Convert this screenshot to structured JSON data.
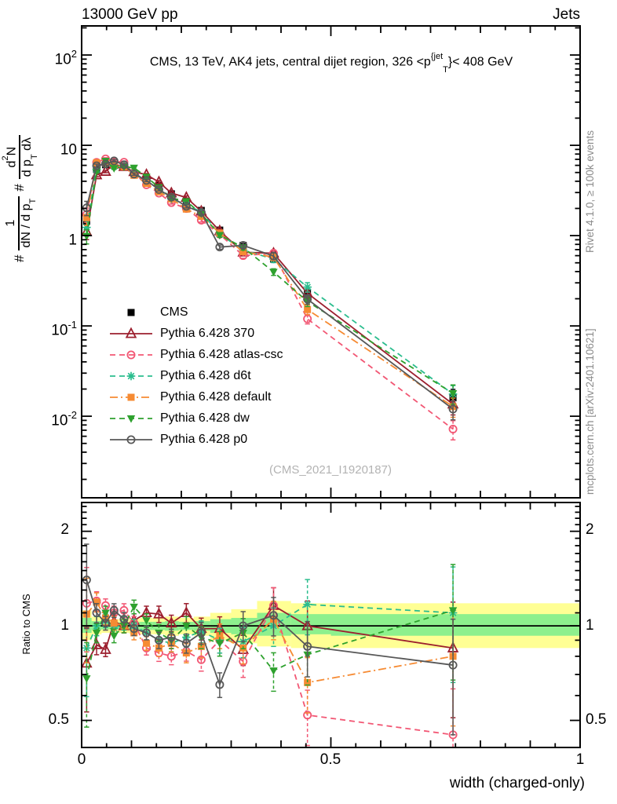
{
  "header": {
    "left": "13000 GeV pp",
    "right": "Jets"
  },
  "title_parts": {
    "main": "CMS, 13 TeV, AK4 jets, central dijet region, 326 <p",
    "sup": "{jet",
    "sub": "T",
    "tail": "}< 408 GeV"
  },
  "ylabel_parts": {
    "sharp1": "#",
    "f1_num": "1",
    "f1_den": "dN / d p",
    "f1_den_sub": "T",
    "sharp2": "#",
    "f2_num_a": "d",
    "f2_num_sup": "2",
    "f2_num_b": "N",
    "f2_den_a": "d p",
    "f2_den_sub": "T",
    "f2_den_b": " dλ"
  },
  "ratio_ylabel": "Ratio to CMS",
  "watermark": "(CMS_2021_I1920187)",
  "side_notes": {
    "top": "Rivet 4.1.0, ≥ 100k events",
    "bottom": "mcplots.cern.ch [arXiv:2401.10621]"
  },
  "chart_data": {
    "type": "line",
    "xlabel": "width (charged-only)",
    "xlim": [
      0,
      1
    ],
    "main_ylim": [
      0.00125,
      210
    ],
    "ratio_ylim": [
      0.41,
      2.47
    ],
    "x_ticks": [
      {
        "v": 0,
        "label": "0"
      },
      {
        "v": 0.5,
        "label": "0.5"
      },
      {
        "v": 1,
        "label": "1"
      }
    ],
    "main_y_ticks": [
      {
        "v": 100,
        "base": "10",
        "exp": "2"
      },
      {
        "v": 10,
        "base": "10",
        "exp": ""
      },
      {
        "v": 1,
        "base": "1",
        "exp": ""
      },
      {
        "v": 0.1,
        "base": "10",
        "exp": "-1"
      },
      {
        "v": 0.01,
        "base": "10",
        "exp": "-2"
      }
    ],
    "ratio_y_ticks": [
      {
        "v": 2,
        "label": "2"
      },
      {
        "v": 1,
        "label": "1"
      },
      {
        "v": 0.5,
        "label": "0.5"
      }
    ],
    "x": [
      0.01,
      0.03,
      0.048,
      0.065,
      0.085,
      0.105,
      0.13,
      0.155,
      0.18,
      0.21,
      0.24,
      0.277,
      0.324,
      0.385,
      0.453,
      0.745
    ],
    "err_frac": [
      0.3,
      0.07,
      0.05,
      0.05,
      0.05,
      0.05,
      0.05,
      0.06,
      0.06,
      0.07,
      0.08,
      0.09,
      0.11,
      0.14,
      0.2,
      0.4
    ],
    "cms": {
      "name": "CMS",
      "color": "#000000",
      "marker": "square-filled",
      "values": [
        1.45,
        5.4,
        6.1,
        6.0,
        5.8,
        4.9,
        4.3,
        3.6,
        2.9,
        2.4,
        1.9,
        1.15,
        0.78,
        0.55,
        0.23,
        0.016
      ]
    },
    "series": [
      {
        "name": "Pythia 6.428 370",
        "color": "#9c1f2e",
        "line": "solid",
        "marker": "triangle-open",
        "ratio": [
          0.76,
          0.87,
          0.84,
          1.03,
          1.0,
          1.04,
          1.1,
          1.09,
          1.02,
          1.1,
          0.98,
          0.98,
          0.84,
          1.16,
          1.0,
          0.85
        ]
      },
      {
        "name": "Pythia 6.428 atlas-csc",
        "color": "#f25774",
        "line": "dash",
        "marker": "circle-open",
        "ratio": [
          1.18,
          1.2,
          1.16,
          1.1,
          1.12,
          1.02,
          0.85,
          0.82,
          0.8,
          0.83,
          0.78,
          0.9,
          0.77,
          1.16,
          0.52,
          0.45
        ]
      },
      {
        "name": "Pythia 6.428 d6t",
        "color": "#2bbd8e",
        "line": "dash",
        "marker": "asterisk",
        "ratio": [
          0.85,
          1.0,
          1.04,
          0.98,
          1.02,
          1.0,
          0.95,
          0.9,
          0.88,
          0.92,
          0.96,
          0.9,
          0.89,
          1.0,
          1.17,
          1.1
        ]
      },
      {
        "name": "Pythia 6.428 default",
        "color": "#f68b33",
        "line": "dashdot",
        "marker": "square-filled",
        "ratio": [
          1.09,
          1.19,
          1.06,
          1.02,
          1.0,
          0.95,
          0.88,
          0.85,
          0.88,
          0.82,
          0.86,
          0.93,
          0.85,
          1.05,
          0.66,
          0.8
        ]
      },
      {
        "name": "Pythia 6.428 dw",
        "color": "#2ea12e",
        "line": "dash",
        "marker": "triangle-down-filled",
        "ratio": [
          0.68,
          0.95,
          1.1,
          0.93,
          1.0,
          1.15,
          1.04,
          0.95,
          0.9,
          1.0,
          0.92,
          0.88,
          0.95,
          0.72,
          0.81,
          1.12
        ]
      },
      {
        "name": "Pythia 6.428 p0",
        "color": "#585858",
        "line": "solid",
        "marker": "circle-open",
        "ratio": [
          1.4,
          1.1,
          1.02,
          1.12,
          1.05,
          0.98,
          0.95,
          0.9,
          0.92,
          0.88,
          0.95,
          0.65,
          1.0,
          1.08,
          0.86,
          0.75
        ]
      }
    ],
    "bands": {
      "yellow_color": "#ffff94",
      "green_color": "#8df08d",
      "bins": [
        {
          "x0": 0.0,
          "x1": 0.02,
          "ylo": 0.9,
          "yhi": 1.12,
          "glo": 0.95,
          "ghi": 1.06
        },
        {
          "x0": 0.02,
          "x1": 0.04,
          "ylo": 0.94,
          "yhi": 1.07,
          "glo": 0.97,
          "ghi": 1.035
        },
        {
          "x0": 0.04,
          "x1": 0.057,
          "ylo": 0.95,
          "yhi": 1.05,
          "glo": 0.975,
          "ghi": 1.025
        },
        {
          "x0": 0.057,
          "x1": 0.075,
          "ylo": 0.95,
          "yhi": 1.05,
          "glo": 0.975,
          "ghi": 1.025
        },
        {
          "x0": 0.075,
          "x1": 0.095,
          "ylo": 0.95,
          "yhi": 1.05,
          "glo": 0.975,
          "ghi": 1.025
        },
        {
          "x0": 0.095,
          "x1": 0.117,
          "ylo": 0.945,
          "yhi": 1.055,
          "glo": 0.973,
          "ghi": 1.028
        },
        {
          "x0": 0.117,
          "x1": 0.142,
          "ylo": 0.94,
          "yhi": 1.06,
          "glo": 0.97,
          "ghi": 1.03
        },
        {
          "x0": 0.142,
          "x1": 0.167,
          "ylo": 0.94,
          "yhi": 1.06,
          "glo": 0.97,
          "ghi": 1.03
        },
        {
          "x0": 0.167,
          "x1": 0.195,
          "ylo": 0.93,
          "yhi": 1.07,
          "glo": 0.965,
          "ghi": 1.035
        },
        {
          "x0": 0.195,
          "x1": 0.225,
          "ylo": 0.94,
          "yhi": 1.06,
          "glo": 0.97,
          "ghi": 1.03
        },
        {
          "x0": 0.225,
          "x1": 0.258,
          "ylo": 0.93,
          "yhi": 1.07,
          "glo": 0.965,
          "ghi": 1.035
        },
        {
          "x0": 0.258,
          "x1": 0.3,
          "ylo": 0.9,
          "yhi": 1.1,
          "glo": 0.95,
          "ghi": 1.05
        },
        {
          "x0": 0.3,
          "x1": 0.352,
          "ylo": 0.88,
          "yhi": 1.13,
          "glo": 0.94,
          "ghi": 1.06
        },
        {
          "x0": 0.352,
          "x1": 0.42,
          "ylo": 0.86,
          "yhi": 1.2,
          "glo": 0.93,
          "ghi": 1.1
        },
        {
          "x0": 0.42,
          "x1": 0.5,
          "ylo": 0.85,
          "yhi": 1.18,
          "glo": 0.94,
          "ghi": 1.09
        },
        {
          "x0": 0.5,
          "x1": 1.0,
          "ylo": 0.85,
          "yhi": 1.18,
          "glo": 0.93,
          "ghi": 1.09
        }
      ]
    }
  }
}
